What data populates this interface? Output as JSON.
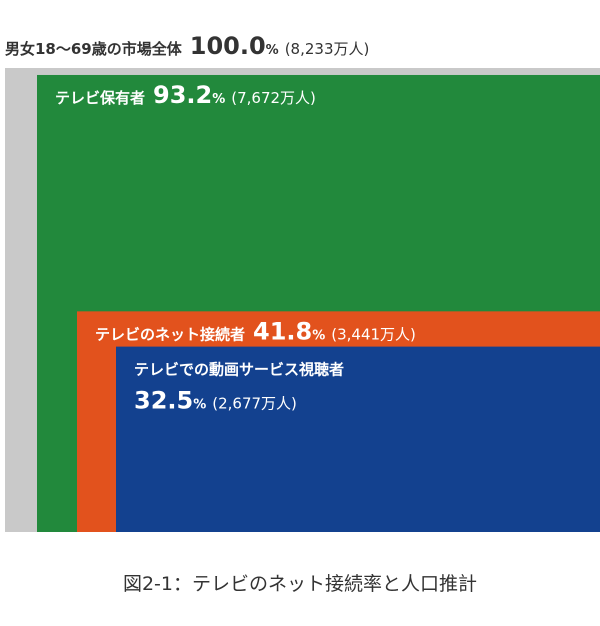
{
  "chart_data": {
    "type": "nested",
    "unit": "%",
    "series": [
      {
        "name": "男女18〜69歳の市場全体",
        "color": "#c9c9c9"
      },
      {
        "name": "テレビ保有者",
        "color": "#22893c"
      },
      {
        "name": "テレビのネット接続者",
        "color": "#e2521d"
      },
      {
        "name": "テレビでの動画サービス視聴者",
        "color": "#13418f"
      }
    ],
    "values": [
      100.0,
      93.2,
      41.8,
      32.5
    ],
    "value_labels": [
      "100.0",
      "93.2",
      "41.8",
      "32.5"
    ],
    "counts": [
      8233,
      7672,
      3441,
      2677
    ],
    "count_labels": [
      "(8,233万人)",
      "(7,672万人)",
      "(3,441万人)",
      "(2,677万人)"
    ],
    "caption": "図2-1：テレビのネット接続率と人口推計"
  }
}
